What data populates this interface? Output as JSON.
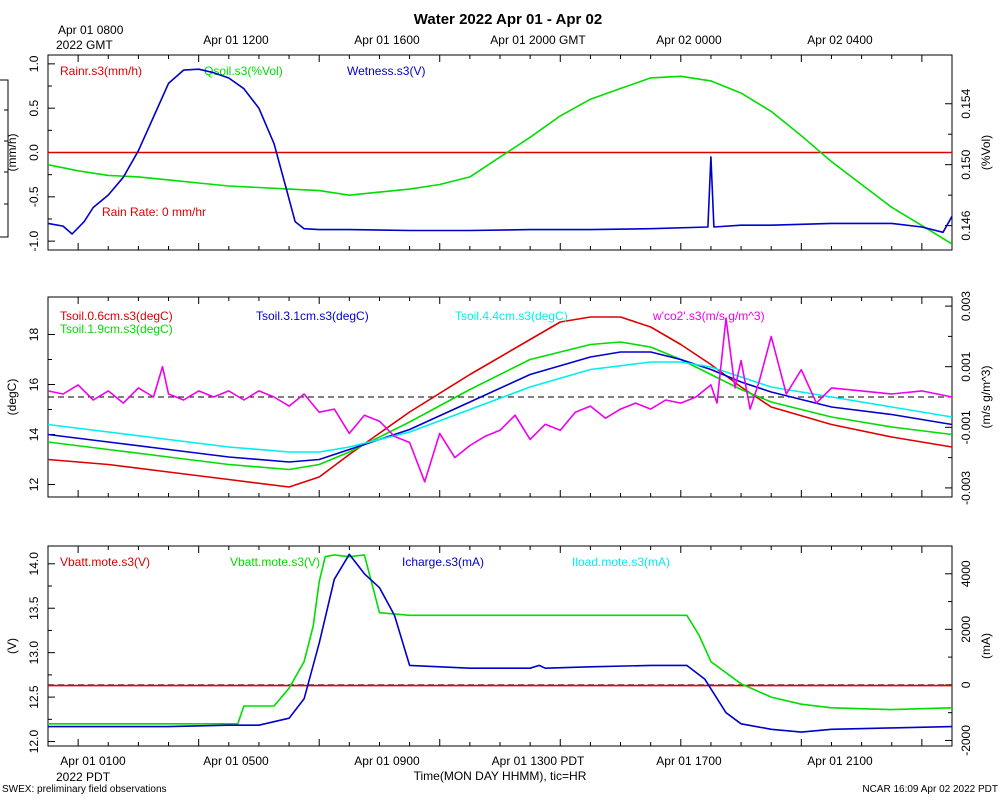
{
  "title": "Water 2022 Apr 01 - Apr 02",
  "top_axis": {
    "start_label_line1": "Apr 01 0800",
    "start_label_line2": "2022 GMT",
    "labels": [
      "Apr 01 1200",
      "Apr 01 1600",
      "Apr 01 2000 GMT",
      "Apr 02 0000",
      "Apr 02 0400"
    ]
  },
  "bottom_axis": {
    "labels": [
      "Apr 01 0100",
      "Apr 01 0500",
      "Apr 01 0900",
      "Apr 01 1300 PDT",
      "Apr 01 1700",
      "Apr 01 2100"
    ],
    "year_label": "2022 PDT",
    "title": "Time(MON DAY HHMM), tic=HR"
  },
  "footer": {
    "left": "SWEX: preliminary field observations",
    "right": "NCAR 16:09 Apr 02 2022 PDT"
  },
  "colors": {
    "red": "#dd0000",
    "green": "#00dd00",
    "blue": "#0000cc",
    "cyan": "#00eeee",
    "magenta": "#ee00ee",
    "black": "#000000"
  },
  "chart_data": [
    {
      "type": "line",
      "panel": "top",
      "x_hours_range": [
        0,
        30
      ],
      "left_axis": {
        "label": "(mm/h)",
        "ylim": [
          -1.1,
          1.1
        ],
        "ticks": [
          -1.0,
          -0.5,
          0.0,
          0.5,
          1.0
        ],
        "tick_labels": [
          "-1.0",
          "-0.5",
          "0.0",
          "0.5",
          "1.0"
        ]
      },
      "right_axis": {
        "label": "(%Vol)",
        "ylim": [
          0.1444,
          0.1572
        ],
        "ticks": [
          0.146,
          0.15,
          0.154
        ],
        "tick_labels": [
          "0.146",
          "0.150",
          "0.154"
        ]
      },
      "reference_line": 0.0,
      "annotation": "Rain Rate: 0 mm/hr",
      "series": [
        {
          "name": "Rainr.s3(mm/h)",
          "color": "red",
          "axis": "left",
          "x": [
            0,
            30
          ],
          "y": [
            0.0,
            0.0
          ]
        },
        {
          "name": "Qsoil.s3(%Vol)",
          "color": "green",
          "axis": "right",
          "x": [
            0,
            1,
            2,
            3,
            4,
            5,
            6,
            7,
            8,
            9,
            10,
            11,
            12,
            13,
            14,
            15,
            16,
            17,
            18,
            19,
            20,
            21,
            22,
            23,
            24,
            25,
            26,
            27,
            28,
            29,
            30
          ],
          "y": [
            0.15,
            0.1496,
            0.1493,
            0.1492,
            0.149,
            0.1488,
            0.1486,
            0.1485,
            0.1484,
            0.1483,
            0.148,
            0.1482,
            0.1484,
            0.1487,
            0.1492,
            0.1505,
            0.1518,
            0.1532,
            0.1543,
            0.155,
            0.1557,
            0.1558,
            0.1555,
            0.1547,
            0.1535,
            0.1519,
            0.1502,
            0.1487,
            0.1472,
            0.146,
            0.1448
          ]
        },
        {
          "name": "Wetness.s3(V)",
          "color": "blue",
          "axis": "left",
          "x": [
            0,
            0.5,
            0.8,
            1.2,
            1.5,
            2,
            2.5,
            3,
            3.5,
            4,
            4.5,
            5,
            5.5,
            6,
            6.5,
            7,
            7.5,
            7.9,
            8.2,
            8.5,
            9,
            10,
            12,
            14,
            16,
            18,
            20,
            21.9,
            22.0,
            22.1,
            23,
            24,
            26,
            28,
            29,
            29.7,
            30
          ],
          "y": [
            -0.8,
            -0.83,
            -0.92,
            -0.78,
            -0.62,
            -0.48,
            -0.28,
            0.02,
            0.4,
            0.78,
            0.93,
            0.94,
            0.9,
            0.84,
            0.72,
            0.5,
            0.1,
            -0.4,
            -0.78,
            -0.86,
            -0.87,
            -0.87,
            -0.88,
            -0.88,
            -0.87,
            -0.87,
            -0.86,
            -0.84,
            -0.05,
            -0.84,
            -0.82,
            -0.82,
            -0.8,
            -0.8,
            -0.84,
            -0.9,
            -0.72
          ]
        }
      ]
    },
    {
      "type": "line",
      "panel": "middle",
      "x_hours_range": [
        0,
        30
      ],
      "left_axis": {
        "label": "(degC)",
        "ylim": [
          11.5,
          19.5
        ],
        "ticks": [
          12,
          14,
          16,
          18
        ],
        "tick_labels": [
          "12",
          "14",
          "16",
          "18"
        ]
      },
      "right_axis": {
        "label": "(m/s g/m^3)",
        "ylim": [
          -0.0033,
          0.0033
        ],
        "ticks": [
          -0.003,
          -0.001,
          0.001,
          0.003
        ],
        "tick_labels": [
          "-0.003",
          "-0.001",
          "0.001",
          "0.003"
        ]
      },
      "reference_line_right": 0.0,
      "series": [
        {
          "name": "Tsoil.0.6cm.s3(degC)",
          "color": "red",
          "axis": "left",
          "x": [
            0,
            2,
            4,
            6,
            8,
            9,
            10,
            12,
            14,
            16,
            17,
            18,
            19,
            20,
            21,
            22,
            23,
            24,
            26,
            28,
            30
          ],
          "y": [
            13.0,
            12.8,
            12.5,
            12.2,
            11.9,
            12.3,
            13.2,
            14.9,
            16.4,
            17.8,
            18.5,
            18.7,
            18.7,
            18.3,
            17.6,
            16.8,
            15.9,
            15.1,
            14.4,
            13.9,
            13.5
          ]
        },
        {
          "name": "Tsoil.1.9cm.s3(degC)",
          "color": "green",
          "axis": "left",
          "x": [
            0,
            2,
            4,
            6,
            8,
            9,
            10,
            12,
            14,
            16,
            18,
            19,
            20,
            21,
            22,
            23,
            24,
            26,
            28,
            30
          ],
          "y": [
            13.7,
            13.4,
            13.1,
            12.8,
            12.6,
            12.8,
            13.3,
            14.5,
            15.8,
            17.0,
            17.6,
            17.7,
            17.5,
            17.0,
            16.4,
            15.8,
            15.3,
            14.7,
            14.3,
            14.0
          ]
        },
        {
          "name": "Tsoil.3.1cm.s3(degC)",
          "color": "blue",
          "axis": "left",
          "x": [
            0,
            2,
            4,
            6,
            8,
            9,
            10,
            12,
            14,
            16,
            18,
            19,
            20,
            21,
            22,
            23,
            24,
            26,
            28,
            30
          ],
          "y": [
            14.0,
            13.7,
            13.4,
            13.1,
            12.9,
            13.0,
            13.4,
            14.2,
            15.3,
            16.4,
            17.1,
            17.3,
            17.3,
            17.0,
            16.6,
            16.1,
            15.7,
            15.1,
            14.8,
            14.4
          ]
        },
        {
          "name": "Tsoil.4.4cm.s3(degC)",
          "color": "cyan",
          "axis": "left",
          "x": [
            0,
            2,
            4,
            6,
            8,
            9,
            10,
            12,
            14,
            16,
            18,
            20,
            21,
            22,
            23,
            24,
            26,
            28,
            30
          ],
          "y": [
            14.4,
            14.1,
            13.8,
            13.5,
            13.3,
            13.3,
            13.5,
            14.1,
            15.0,
            15.9,
            16.6,
            16.9,
            16.9,
            16.7,
            16.3,
            15.9,
            15.5,
            15.1,
            14.7
          ]
        },
        {
          "name": "w'co2'.s3(m/s g/m^3)",
          "color": "magenta",
          "axis": "right",
          "x": [
            0,
            0.5,
            1,
            1.5,
            2,
            2.5,
            3,
            3.5,
            3.8,
            4,
            4.5,
            5,
            5.5,
            6,
            6.5,
            7,
            7.5,
            8,
            8.5,
            9,
            9.5,
            10,
            10.5,
            11,
            11.5,
            12,
            12.5,
            13,
            13.5,
            14,
            14.5,
            15,
            15.5,
            16,
            16.5,
            17,
            17.5,
            18,
            18.5,
            19,
            19.5,
            20,
            20.5,
            21,
            21.5,
            22,
            22.2,
            22.5,
            22.8,
            23,
            23.3,
            23.6,
            24,
            24.5,
            25,
            25.5,
            26,
            27,
            28,
            29,
            30
          ],
          "y": [
            0.0002,
            0.0001,
            0.0004,
            -0.0001,
            0.0002,
            -0.0002,
            0.0003,
            0.0,
            0.001,
            0.0001,
            -0.0001,
            0.0002,
            0.0,
            0.0002,
            -0.0001,
            0.0002,
            0.0,
            -0.0003,
            0.0001,
            -0.0005,
            -0.0004,
            -0.0012,
            -0.0006,
            -0.0008,
            -0.0013,
            -0.0015,
            -0.0028,
            -0.0012,
            -0.002,
            -0.0016,
            -0.0013,
            -0.0011,
            -0.0006,
            -0.0014,
            -0.0009,
            -0.0011,
            -0.0005,
            -0.0003,
            -0.0007,
            -0.0004,
            -0.0002,
            -0.0004,
            -0.0001,
            -0.0002,
            0.0,
            0.0004,
            -0.0002,
            0.0026,
            0.0003,
            0.0012,
            -0.0004,
            0.0005,
            0.002,
            0.0001,
            0.0009,
            -0.0002,
            0.0003,
            0.0002,
            0.0001,
            0.0002,
            0.0
          ]
        }
      ]
    },
    {
      "type": "line",
      "panel": "bottom",
      "x_hours_range": [
        0,
        30
      ],
      "left_axis": {
        "label": "(V)",
        "ylim": [
          11.95,
          14.2
        ],
        "ticks": [
          12.0,
          12.5,
          13.0,
          13.5,
          14.0
        ],
        "tick_labels": [
          "12.0",
          "12.5",
          "13.0",
          "13.5",
          "14.0"
        ]
      },
      "right_axis": {
        "label": "(mA)",
        "ylim": [
          -2200,
          5000
        ],
        "ticks": [
          -2000,
          0,
          2000,
          4000
        ],
        "tick_labels": [
          "-2000",
          "0",
          "2000",
          "4000"
        ]
      },
      "reference_line_right": 0,
      "series": [
        {
          "name": "Vbatt.mote.s3(V)",
          "color": "red",
          "axis": "left",
          "x": [
            0,
            30
          ],
          "y": [
            12.63,
            12.63
          ]
        },
        {
          "name": "Vbatt.mote.s3(V)",
          "color": "green",
          "axis": "left",
          "x": [
            0,
            2,
            4,
            6.3,
            6.5,
            7.5,
            8.0,
            8.5,
            8.8,
            9.0,
            9.2,
            9.5,
            10,
            10.5,
            11,
            12,
            13,
            14,
            16,
            18,
            20,
            21.2,
            21.6,
            22,
            23,
            24,
            25,
            26,
            28,
            30
          ],
          "y": [
            12.2,
            12.2,
            12.2,
            12.2,
            12.4,
            12.4,
            12.6,
            12.9,
            13.3,
            13.8,
            14.08,
            14.1,
            14.08,
            14.1,
            13.45,
            13.42,
            13.42,
            13.42,
            13.42,
            13.42,
            13.42,
            13.42,
            13.2,
            12.9,
            12.65,
            12.5,
            12.42,
            12.38,
            12.36,
            12.38
          ]
        },
        {
          "name": "Icharge.s3(mA)",
          "color": "blue",
          "axis": "right",
          "x": [
            0,
            2,
            4,
            6,
            7,
            8,
            8.5,
            9,
            9.5,
            10,
            10.5,
            11,
            11.5,
            12,
            14,
            16,
            16.3,
            16.5,
            18,
            20,
            21.2,
            21.8,
            22.5,
            23,
            24,
            25,
            26,
            28,
            30
          ],
          "y": [
            -1500,
            -1500,
            -1500,
            -1450,
            -1450,
            -1200,
            -500,
            1500,
            3800,
            4700,
            4000,
            3500,
            2500,
            700,
            600,
            600,
            700,
            600,
            650,
            700,
            700,
            200,
            -1000,
            -1400,
            -1600,
            -1700,
            -1600,
            -1550,
            -1500
          ]
        },
        {
          "name": "Iload.mote.s3(mA)",
          "color": "cyan",
          "axis": "right",
          "x": [],
          "y": []
        }
      ]
    }
  ]
}
